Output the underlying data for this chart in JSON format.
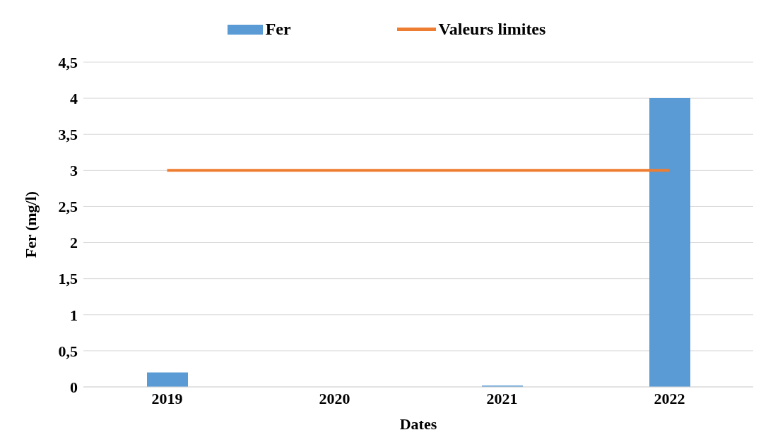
{
  "chart_data": {
    "type": "bar",
    "xlabel": "Dates",
    "ylabel": "Fer (mg/l)",
    "categories": [
      "2019",
      "2020",
      "2021",
      "2022"
    ],
    "series": [
      {
        "name": "Fer",
        "color": "#5b9bd5",
        "values": [
          0.2,
          0,
          0.02,
          4
        ]
      },
      {
        "name": "Valeurs limites",
        "type": "line",
        "color": "#ed7d31",
        "values": [
          3,
          3,
          3,
          3
        ]
      }
    ],
    "ylim": [
      0,
      4.5
    ],
    "yticks": [
      0,
      {
        "value": 0.5,
        "label": "0,5"
      },
      1,
      {
        "value": 1.5,
        "label": "1,5"
      },
      2,
      {
        "value": 2.5,
        "label": "2,5"
      },
      3,
      {
        "value": 3.5,
        "label": "3,5"
      },
      4,
      {
        "value": 4.5,
        "label": "4,5"
      }
    ],
    "grid": "y",
    "legend": "top",
    "marker": "none",
    "line_style": "solid"
  }
}
